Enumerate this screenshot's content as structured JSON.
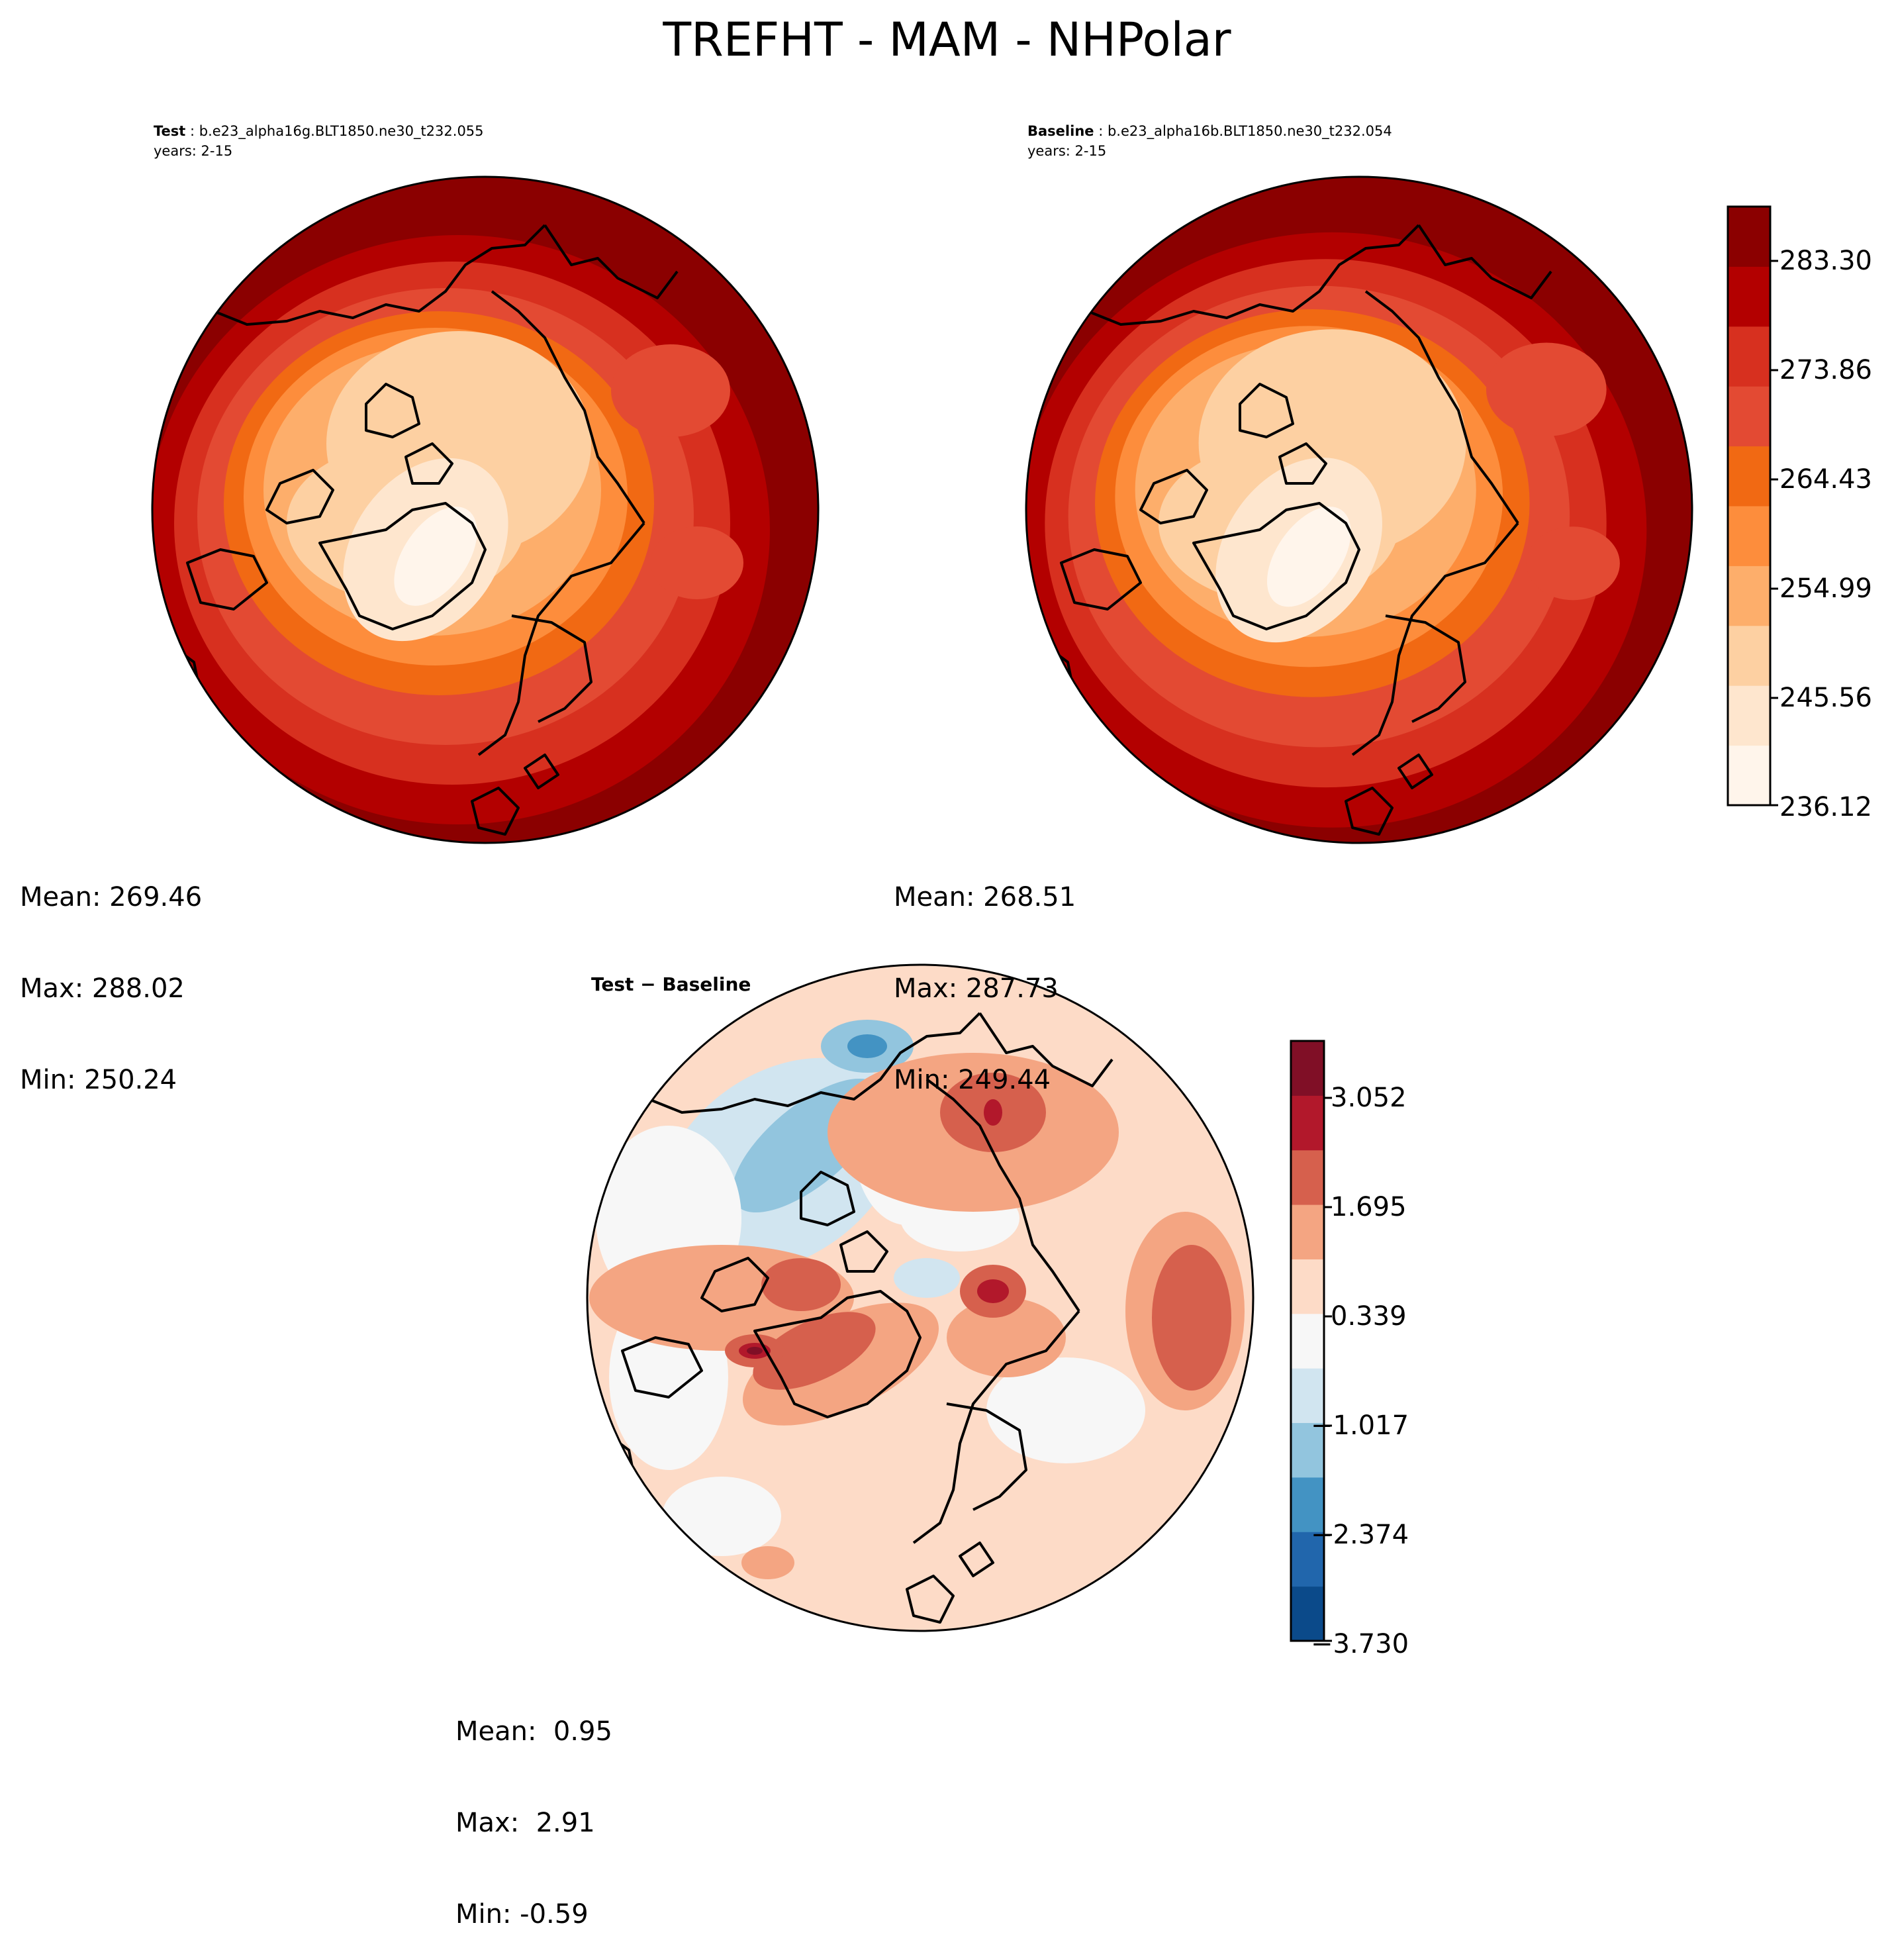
{
  "title": "TREFHT - MAM - NHPolar",
  "panels": {
    "test": {
      "label_bold": "Test",
      "label_rest": " : b.e23_alpha16g.BLT1850.ne30_t232.055",
      "years": "years: 2-15",
      "stats": {
        "mean": "Mean: 269.46",
        "max": "Max: 288.02",
        "min": "Min: 250.24"
      }
    },
    "baseline": {
      "label_bold": "Baseline",
      "label_rest": " : b.e23_alpha16b.BLT1850.ne30_t232.054",
      "years": "years: 2-15",
      "stats": {
        "mean": "Mean: 268.51",
        "max": "Max: 287.73",
        "min": "Min: 249.44"
      }
    },
    "diff": {
      "title": "Test − Baseline",
      "stats": {
        "mean": "Mean:  0.95",
        "max": "Max:  2.91",
        "min": "Min: -0.59"
      }
    }
  },
  "colorbars": {
    "abs": {
      "ticks": [
        "283.30",
        "273.86",
        "264.43",
        "254.99",
        "245.56",
        "236.12"
      ],
      "colors": [
        "#fff5eb",
        "#fee6ce",
        "#fdd0a2",
        "#fdae6b",
        "#fd8d3c",
        "#f16913",
        "#e34a33",
        "#d7301f",
        "#b30000",
        "#8b0000"
      ]
    },
    "diff": {
      "ticks": [
        "3.052",
        "1.695",
        "0.339",
        "−1.017",
        "−2.374",
        "−3.730"
      ],
      "colors": [
        "#0b4a8a",
        "#2166ac",
        "#4393c3",
        "#92c5de",
        "#d1e5f0",
        "#f7f7f7",
        "#fddbc7",
        "#f4a582",
        "#d6604d",
        "#b2182b",
        "#800f26"
      ]
    }
  },
  "chart_data": [
    {
      "type": "heatmap",
      "title": "Test : b.e23_alpha16g.BLT1850.ne30_t232.055",
      "subtitle": "years: 2-15",
      "projection": "north-polar-stereographic",
      "variable": "TREFHT",
      "season": "MAM",
      "region": "NHPolar",
      "mean": 269.46,
      "max": 288.02,
      "min": 250.24,
      "levels": [
        236.12,
        240.84,
        245.56,
        250.28,
        254.99,
        259.71,
        264.43,
        269.15,
        273.86,
        278.58,
        283.3,
        288.02
      ]
    },
    {
      "type": "heatmap",
      "title": "Baseline : b.e23_alpha16b.BLT1850.ne30_t232.054",
      "subtitle": "years: 2-15",
      "projection": "north-polar-stereographic",
      "mean": 268.51,
      "max": 287.73,
      "min": 249.44,
      "levels": [
        236.12,
        240.84,
        245.56,
        250.28,
        254.99,
        259.71,
        264.43,
        269.15,
        273.86,
        278.58,
        283.3,
        288.02
      ]
    },
    {
      "type": "heatmap",
      "title": "Test − Baseline",
      "projection": "north-polar-stereographic",
      "mean": 0.95,
      "max": 2.91,
      "min": -0.59,
      "levels": [
        -3.73,
        -3.052,
        -2.374,
        -1.695,
        -1.017,
        -0.339,
        0.339,
        1.017,
        1.695,
        2.374,
        3.052,
        3.73
      ]
    }
  ]
}
